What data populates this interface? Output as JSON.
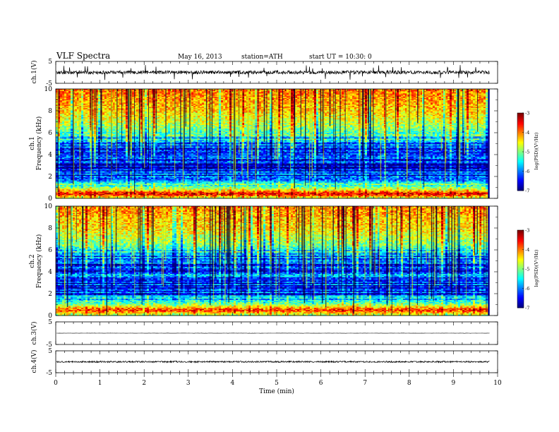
{
  "header": {
    "title": "VLF  Spectra",
    "date": "May 16, 2013",
    "station": "station=ATH",
    "start": "start  UT  =   10:30: 0"
  },
  "chart_data": [
    {
      "type": "line",
      "panel": "ch1-waveform",
      "ylabel": "ch.1(V)",
      "ylim": [
        -5,
        5
      ],
      "yticks": [
        "5",
        "-5"
      ],
      "xlim": [
        0,
        10
      ],
      "data_extent_min": 9.82,
      "level_V": 0,
      "noise_V": 0.8,
      "spike_V": 3.5,
      "color": "#000000"
    },
    {
      "type": "heatmap",
      "panel": "ch1-spectrogram",
      "ylabel_top": "ch.1",
      "ylabel": "Frequency  (kHz)",
      "ylim": [
        0,
        10
      ],
      "yticks": [
        "0",
        "2",
        "4",
        "6",
        "8",
        "10"
      ],
      "xlim": [
        0,
        10
      ],
      "data_extent_min": 9.82,
      "colorbar": {
        "label": "log(PSD)(V²/Hz)",
        "range": [
          -7,
          -3
        ],
        "ticks": [
          "-3",
          "-4",
          "-5",
          "-6",
          "-7"
        ]
      },
      "profile": [
        {
          "f_khz": 0.0,
          "log_psd": -4.8
        },
        {
          "f_khz": 0.4,
          "log_psd": -3.3
        },
        {
          "f_khz": 0.8,
          "log_psd": -4.6
        },
        {
          "f_khz": 1.2,
          "log_psd": -5.4
        },
        {
          "f_khz": 2.0,
          "log_psd": -6.3
        },
        {
          "f_khz": 3.0,
          "log_psd": -6.5
        },
        {
          "f_khz": 4.0,
          "log_psd": -6.3
        },
        {
          "f_khz": 5.0,
          "log_psd": -6.0
        },
        {
          "f_khz": 5.8,
          "log_psd": -5.4
        },
        {
          "f_khz": 6.5,
          "log_psd": -4.9
        },
        {
          "f_khz": 8.0,
          "log_psd": -4.3
        },
        {
          "f_khz": 10.0,
          "log_psd": -3.9
        }
      ]
    },
    {
      "type": "heatmap",
      "panel": "ch2-spectrogram",
      "ylabel_top": "ch.2",
      "ylabel": "Frequency  (kHz)",
      "ylim": [
        0,
        10
      ],
      "yticks": [
        "0",
        "2",
        "4",
        "6",
        "8",
        "10"
      ],
      "xlim": [
        0,
        10
      ],
      "data_extent_min": 9.82,
      "colorbar": {
        "label": "log(PSD)(V²/Hz)",
        "range": [
          -7,
          -3
        ],
        "ticks": [
          "-3",
          "-4",
          "-5",
          "-6",
          "-7"
        ]
      },
      "profile": [
        {
          "f_khz": 0.0,
          "log_psd": -4.9
        },
        {
          "f_khz": 0.5,
          "log_psd": -3.6
        },
        {
          "f_khz": 0.9,
          "log_psd": -4.7
        },
        {
          "f_khz": 1.3,
          "log_psd": -5.5
        },
        {
          "f_khz": 2.0,
          "log_psd": -6.2
        },
        {
          "f_khz": 3.0,
          "log_psd": -6.3
        },
        {
          "f_khz": 4.0,
          "log_psd": -6.2
        },
        {
          "f_khz": 5.0,
          "log_psd": -6.1
        },
        {
          "f_khz": 5.8,
          "log_psd": -5.6
        },
        {
          "f_khz": 6.5,
          "log_psd": -5.0
        },
        {
          "f_khz": 8.0,
          "log_psd": -4.4
        },
        {
          "f_khz": 10.0,
          "log_psd": -4.0
        }
      ]
    },
    {
      "type": "line",
      "panel": "ch3-waveform",
      "ylabel": "ch.3(V)",
      "ylim": [
        -5,
        5
      ],
      "yticks": [
        "5",
        "-5"
      ],
      "xlim": [
        0,
        10
      ],
      "data_extent_min": 9.82,
      "level_V": 0,
      "noise_V": 0.05,
      "spike_V": 0,
      "color": "#000000"
    },
    {
      "type": "line",
      "panel": "ch4-waveform",
      "ylabel": "ch.4(V)",
      "ylim": [
        -5,
        5
      ],
      "yticks": [
        "5",
        "-5"
      ],
      "xlim": [
        0,
        10
      ],
      "data_extent_min": 9.82,
      "level_V": 0,
      "noise_V": 0.35,
      "spike_V": 0,
      "color": "#000000"
    }
  ],
  "xaxis": {
    "label": "Time  (min)",
    "ticks": [
      "0",
      "1",
      "2",
      "3",
      "4",
      "5",
      "6",
      "7",
      "8",
      "9",
      "10"
    ]
  }
}
